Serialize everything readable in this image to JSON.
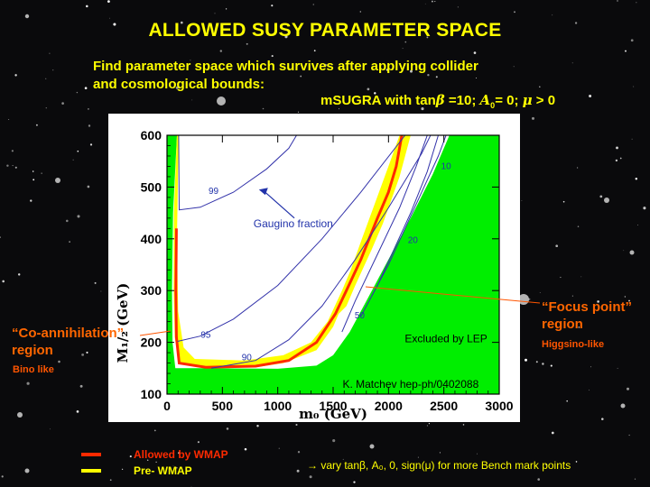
{
  "title": "ALLOWED SUSY PARAMETER SPACE",
  "subtitle_line1": "Find parameter space which survives after applying collider",
  "subtitle_line2": "and cosmological bounds:",
  "model_prefix": "mSUGRA with tan",
  "model_beta": "β",
  "model_mid1": " =10; ",
  "model_A": "A",
  "model_A_sub": "0",
  "model_mid2": "= 0; ",
  "model_mu": "μ",
  "model_suffix": " > 0",
  "callouts": {
    "coannihilation_title_1": "“Co-annihilation”",
    "coannihilation_title_2": "region",
    "coannihilation_sub": "Bino like",
    "focus_title_1": "“Focus point”",
    "focus_title_2": "region",
    "focus_sub": "Higgsino-like"
  },
  "legend": {
    "wmap_label": "Allowed by WMAP",
    "prewmap_label": "Pre- WMAP",
    "wmap_color": "#ff2a00",
    "prewmap_color": "#ffff00"
  },
  "footnote": "→ vary tanβ, A₀, 0, sign(μ)  for more Bench mark points",
  "colors": {
    "title": "#ffff00",
    "callout": "#ff6600",
    "excluded": "#00ee00",
    "contour": "#3333aa",
    "plot_bg": "#ffffff"
  },
  "chart_data": {
    "type": "contour",
    "xlabel": "m₀ (GeV)",
    "ylabel": "M₁/₂ (GeV)",
    "xlim": [
      0,
      3000
    ],
    "ylim": [
      100,
      600
    ],
    "xticks": [
      0,
      500,
      1000,
      1500,
      2000,
      2500,
      3000
    ],
    "yticks": [
      100,
      200,
      300,
      400,
      500,
      600
    ],
    "regions": [
      {
        "name": "Excluded by LEP",
        "color": "#00ee00"
      },
      {
        "name": "Allowed by WMAP",
        "color": "#ff2a00"
      },
      {
        "name": "Pre- WMAP",
        "color": "#ffff00"
      }
    ],
    "contours": [
      {
        "label": "99",
        "points": [
          [
            105,
            600
          ],
          [
            110,
            456
          ],
          [
            300,
            461
          ],
          [
            600,
            490
          ],
          [
            900,
            535
          ],
          [
            1100,
            575
          ],
          [
            1170,
            600
          ]
        ]
      },
      {
        "label": "95",
        "points": [
          [
            95,
            202
          ],
          [
            300,
            212
          ],
          [
            600,
            245
          ],
          [
            1000,
            310
          ],
          [
            1400,
            400
          ],
          [
            1750,
            490
          ],
          [
            2150,
            600
          ]
        ]
      },
      {
        "label": "90",
        "points": [
          [
            400,
            150
          ],
          [
            800,
            165
          ],
          [
            1100,
            205
          ],
          [
            1400,
            270
          ],
          [
            1700,
            360
          ],
          [
            2000,
            460
          ],
          [
            2300,
            565
          ],
          [
            2380,
            600
          ]
        ]
      },
      {
        "label": "50",
        "points": [
          [
            1580,
            220
          ],
          [
            1700,
            280
          ],
          [
            1900,
            370
          ],
          [
            2100,
            460
          ],
          [
            2250,
            540
          ],
          [
            2350,
            600
          ]
        ]
      },
      {
        "label": "20",
        "points": [
          [
            1750,
            250
          ],
          [
            1900,
            310
          ],
          [
            2050,
            380
          ],
          [
            2200,
            450
          ],
          [
            2350,
            530
          ],
          [
            2450,
            600
          ]
        ]
      },
      {
        "label": "10",
        "points": [
          [
            1850,
            290
          ],
          [
            2000,
            350
          ],
          [
            2150,
            420
          ],
          [
            2300,
            490
          ],
          [
            2450,
            560
          ],
          [
            2520,
            600
          ]
        ]
      }
    ],
    "contour_label_positions": [
      {
        "label": "99",
        "x": 420,
        "y": 487
      },
      {
        "label": "95",
        "x": 350,
        "y": 209
      },
      {
        "label": "90",
        "x": 720,
        "y": 165
      },
      {
        "label": "50",
        "x": 1740,
        "y": 246
      },
      {
        "label": "20",
        "x": 2220,
        "y": 392
      },
      {
        "label": "10",
        "x": 2520,
        "y": 535
      }
    ],
    "annotations": [
      {
        "text": "Gaugino fraction",
        "x": 1140,
        "y": 422
      },
      {
        "text": "Excluded by LEP",
        "x": 2520,
        "y": 200
      },
      {
        "text": "K. Matchev hep-ph/0402088",
        "x": 2200,
        "y": 112
      }
    ]
  }
}
